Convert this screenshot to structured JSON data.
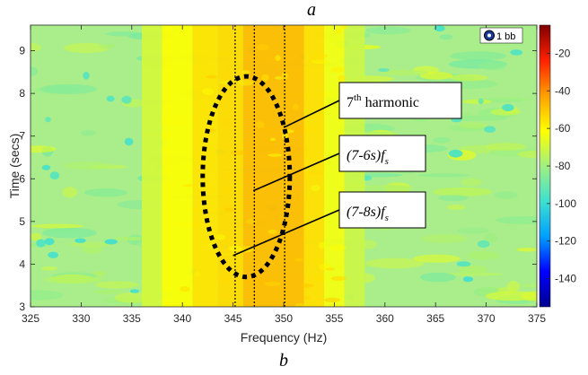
{
  "chart_data": {
    "type": "heatmap",
    "top_caption": "a",
    "bottom_caption": "b",
    "xlabel": "Frequency (Hz)",
    "ylabel": "Time (secs)",
    "xlim": [
      325,
      375
    ],
    "ylim": [
      3,
      9.6
    ],
    "x_ticks": [
      325,
      330,
      335,
      340,
      345,
      350,
      355,
      360,
      365,
      370,
      375
    ],
    "y_ticks": [
      3,
      4,
      5,
      6,
      7,
      8,
      9
    ],
    "colorbar": {
      "range": [
        -155,
        -5
      ],
      "ticks": [
        -20,
        -40,
        -60,
        -80,
        -100,
        -120,
        -140
      ],
      "colormap": [
        "#00008f",
        "#0000ff",
        "#00a0ff",
        "#3ee0d0",
        "#a0f080",
        "#ffff00",
        "#ffa000",
        "#ff2000",
        "#800000"
      ]
    },
    "grid": false,
    "legend": {
      "label": "1 bb",
      "position": "top-right"
    },
    "band": [
      {
        "from": 336,
        "to": 338,
        "level": -70
      },
      {
        "from": 338,
        "to": 341,
        "level": -62
      },
      {
        "from": 341,
        "to": 343.5,
        "level": -56
      },
      {
        "from": 343.5,
        "to": 346,
        "level": -54
      },
      {
        "from": 346,
        "to": 352,
        "level": -48
      },
      {
        "from": 352,
        "to": 354,
        "level": -55
      },
      {
        "from": 354,
        "to": 356,
        "level": -64
      },
      {
        "from": 356,
        "to": 358,
        "level": -72
      }
    ],
    "reference_lines": [
      345.2,
      347.1,
      350.1
    ],
    "ellipse": {
      "cx": 346.3,
      "cy": 6.05,
      "rx": 4.3,
      "ry": 2.35
    },
    "annotations": [
      {
        "html": "7<sup>th</sup> harmonic",
        "parts": [
          "7",
          "th",
          " harmonic"
        ],
        "italic": false,
        "point": [
          350.0,
          7.2
        ]
      },
      {
        "html": "(7-6s)<i>f</i><sub>s</sub>",
        "parts": [
          "(7-6s)",
          "f",
          "s"
        ],
        "italic": true,
        "point": [
          347.0,
          5.72
        ]
      },
      {
        "html": "(7-8s)<i>f</i><sub>s</sub>",
        "parts": [
          "(7-8s)",
          "f",
          "s"
        ],
        "italic": true,
        "point": [
          345.0,
          4.2
        ]
      }
    ]
  }
}
